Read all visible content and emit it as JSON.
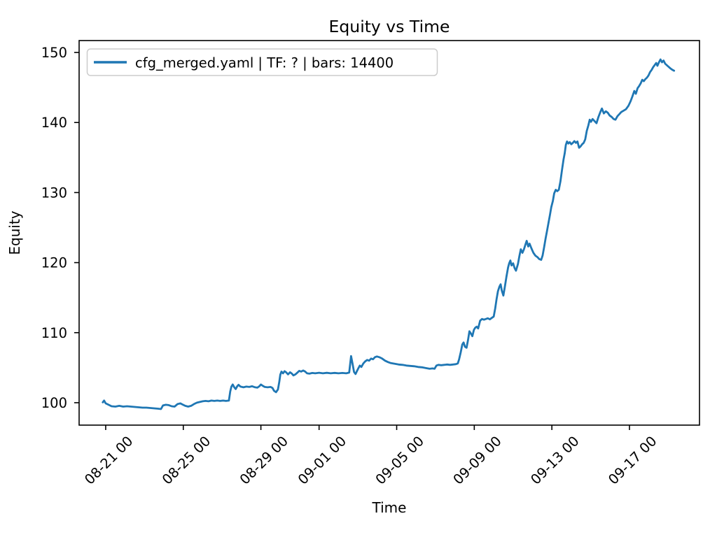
{
  "figure": {
    "background": "#ffffff",
    "text_color": "#000000",
    "spine_color": "#000000"
  },
  "chart_data": {
    "type": "line",
    "title": "Equity vs Time",
    "xlabel": "Time",
    "ylabel": "Equity",
    "grid": false,
    "legend": {
      "position": "upper-left",
      "border_color": "#cccccc",
      "entries": [
        {
          "label": "cfg_merged.yaml | TF: ? | bars: 14400",
          "color": "#1f77b4"
        }
      ]
    },
    "x_axis": {
      "unit": "days since 08-21 00:00",
      "range": [
        -1.37,
        30.61
      ],
      "tick_positions": [
        0,
        4,
        8,
        11,
        15,
        19,
        23,
        27
      ],
      "tick_labels": [
        "08-21 00",
        "08-25 00",
        "08-29 00",
        "09-01 00",
        "09-05 00",
        "09-09 00",
        "09-13 00",
        "09-17 00"
      ],
      "tick_rotation_deg": 45
    },
    "y_axis": {
      "range": [
        96.8,
        151.7
      ],
      "tick_positions": [
        100,
        110,
        120,
        130,
        140,
        150
      ],
      "tick_labels": [
        "100",
        "110",
        "120",
        "130",
        "140",
        "150"
      ]
    },
    "series": [
      {
        "name": "cfg_merged.yaml | TF: ? | bars: 14400",
        "color": "#1f77b4",
        "line_width": 2.8,
        "points": [
          [
            -0.15,
            100.05
          ],
          [
            -0.08,
            100.3
          ],
          [
            0,
            99.9
          ],
          [
            0.15,
            99.7
          ],
          [
            0.3,
            99.5
          ],
          [
            0.5,
            99.45
          ],
          [
            0.7,
            99.55
          ],
          [
            0.9,
            99.45
          ],
          [
            1.1,
            99.5
          ],
          [
            1.3,
            99.45
          ],
          [
            1.5,
            99.4
          ],
          [
            1.7,
            99.35
          ],
          [
            1.9,
            99.3
          ],
          [
            2.1,
            99.3
          ],
          [
            2.3,
            99.25
          ],
          [
            2.5,
            99.2
          ],
          [
            2.7,
            99.15
          ],
          [
            2.85,
            99.1
          ],
          [
            2.95,
            99.6
          ],
          [
            3.1,
            99.7
          ],
          [
            3.25,
            99.65
          ],
          [
            3.4,
            99.5
          ],
          [
            3.55,
            99.45
          ],
          [
            3.7,
            99.8
          ],
          [
            3.85,
            99.9
          ],
          [
            3.95,
            99.75
          ],
          [
            4.1,
            99.55
          ],
          [
            4.25,
            99.45
          ],
          [
            4.4,
            99.55
          ],
          [
            4.55,
            99.8
          ],
          [
            4.7,
            100.0
          ],
          [
            4.85,
            100.1
          ],
          [
            5.0,
            100.2
          ],
          [
            5.15,
            100.25
          ],
          [
            5.3,
            100.2
          ],
          [
            5.45,
            100.3
          ],
          [
            5.6,
            100.25
          ],
          [
            5.75,
            100.3
          ],
          [
            5.9,
            100.25
          ],
          [
            6.05,
            100.3
          ],
          [
            6.2,
            100.25
          ],
          [
            6.35,
            100.3
          ],
          [
            6.42,
            101.6
          ],
          [
            6.48,
            102.3
          ],
          [
            6.55,
            102.6
          ],
          [
            6.63,
            102.2
          ],
          [
            6.7,
            101.95
          ],
          [
            6.78,
            102.35
          ],
          [
            6.85,
            102.55
          ],
          [
            6.95,
            102.3
          ],
          [
            7.1,
            102.2
          ],
          [
            7.25,
            102.3
          ],
          [
            7.4,
            102.25
          ],
          [
            7.55,
            102.35
          ],
          [
            7.7,
            102.2
          ],
          [
            7.82,
            102.15
          ],
          [
            7.92,
            102.35
          ],
          [
            8.0,
            102.6
          ],
          [
            8.1,
            102.4
          ],
          [
            8.2,
            102.25
          ],
          [
            8.35,
            102.2
          ],
          [
            8.5,
            102.25
          ],
          [
            8.6,
            102.1
          ],
          [
            8.68,
            101.7
          ],
          [
            8.78,
            101.5
          ],
          [
            8.88,
            101.9
          ],
          [
            8.95,
            103.0
          ],
          [
            9.0,
            104.0
          ],
          [
            9.06,
            104.45
          ],
          [
            9.14,
            104.2
          ],
          [
            9.22,
            104.5
          ],
          [
            9.3,
            104.35
          ],
          [
            9.4,
            104.05
          ],
          [
            9.5,
            104.35
          ],
          [
            9.6,
            104.15
          ],
          [
            9.68,
            103.9
          ],
          [
            9.78,
            104.05
          ],
          [
            9.88,
            104.3
          ],
          [
            9.98,
            104.55
          ],
          [
            10.08,
            104.45
          ],
          [
            10.18,
            104.6
          ],
          [
            10.28,
            104.45
          ],
          [
            10.38,
            104.2
          ],
          [
            10.5,
            104.15
          ],
          [
            10.65,
            104.25
          ],
          [
            10.8,
            104.2
          ],
          [
            11.0,
            104.28
          ],
          [
            11.2,
            104.2
          ],
          [
            11.4,
            104.27
          ],
          [
            11.6,
            104.2
          ],
          [
            11.8,
            104.26
          ],
          [
            12.0,
            104.2
          ],
          [
            12.2,
            104.25
          ],
          [
            12.4,
            104.2
          ],
          [
            12.55,
            104.3
          ],
          [
            12.65,
            106.65
          ],
          [
            12.72,
            105.6
          ],
          [
            12.8,
            104.4
          ],
          [
            12.88,
            104.1
          ],
          [
            12.95,
            104.5
          ],
          [
            13.02,
            104.9
          ],
          [
            13.1,
            105.3
          ],
          [
            13.18,
            105.1
          ],
          [
            13.28,
            105.6
          ],
          [
            13.38,
            105.9
          ],
          [
            13.48,
            106.1
          ],
          [
            13.58,
            106.0
          ],
          [
            13.68,
            106.3
          ],
          [
            13.78,
            106.2
          ],
          [
            13.88,
            106.5
          ],
          [
            13.98,
            106.6
          ],
          [
            14.1,
            106.5
          ],
          [
            14.25,
            106.3
          ],
          [
            14.4,
            106.0
          ],
          [
            14.55,
            105.8
          ],
          [
            14.7,
            105.65
          ],
          [
            14.9,
            105.55
          ],
          [
            15.1,
            105.45
          ],
          [
            15.3,
            105.4
          ],
          [
            15.5,
            105.3
          ],
          [
            15.7,
            105.25
          ],
          [
            15.9,
            105.2
          ],
          [
            16.1,
            105.1
          ],
          [
            16.3,
            105.05
          ],
          [
            16.5,
            104.95
          ],
          [
            16.7,
            104.85
          ],
          [
            16.85,
            104.9
          ],
          [
            16.95,
            104.85
          ],
          [
            17.05,
            105.3
          ],
          [
            17.15,
            105.4
          ],
          [
            17.3,
            105.35
          ],
          [
            17.45,
            105.4
          ],
          [
            17.6,
            105.45
          ],
          [
            17.75,
            105.4
          ],
          [
            17.9,
            105.45
          ],
          [
            18.05,
            105.5
          ],
          [
            18.15,
            105.6
          ],
          [
            18.22,
            106.2
          ],
          [
            18.3,
            107.2
          ],
          [
            18.38,
            108.3
          ],
          [
            18.45,
            108.6
          ],
          [
            18.52,
            108.0
          ],
          [
            18.6,
            107.85
          ],
          [
            18.68,
            109.0
          ],
          [
            18.75,
            110.2
          ],
          [
            18.82,
            109.9
          ],
          [
            18.9,
            109.5
          ],
          [
            18.98,
            110.4
          ],
          [
            19.05,
            110.7
          ],
          [
            19.12,
            110.85
          ],
          [
            19.2,
            110.6
          ],
          [
            19.3,
            111.7
          ],
          [
            19.4,
            111.95
          ],
          [
            19.5,
            111.85
          ],
          [
            19.6,
            111.95
          ],
          [
            19.7,
            112.05
          ],
          [
            19.8,
            111.9
          ],
          [
            19.9,
            112.1
          ],
          [
            20.0,
            112.3
          ],
          [
            20.08,
            113.5
          ],
          [
            20.15,
            114.8
          ],
          [
            20.22,
            115.9
          ],
          [
            20.3,
            116.6
          ],
          [
            20.36,
            116.9
          ],
          [
            20.42,
            116.0
          ],
          [
            20.5,
            115.3
          ],
          [
            20.58,
            116.6
          ],
          [
            20.66,
            118.0
          ],
          [
            20.74,
            119.3
          ],
          [
            20.8,
            119.9
          ],
          [
            20.86,
            120.3
          ],
          [
            20.92,
            119.6
          ],
          [
            21.0,
            119.9
          ],
          [
            21.08,
            119.2
          ],
          [
            21.15,
            118.85
          ],
          [
            21.25,
            119.8
          ],
          [
            21.33,
            121.0
          ],
          [
            21.4,
            121.9
          ],
          [
            21.48,
            121.4
          ],
          [
            21.56,
            121.9
          ],
          [
            21.64,
            122.6
          ],
          [
            21.7,
            123.1
          ],
          [
            21.78,
            122.3
          ],
          [
            21.85,
            122.7
          ],
          [
            21.95,
            122.0
          ],
          [
            22.05,
            121.4
          ],
          [
            22.15,
            121.0
          ],
          [
            22.25,
            120.8
          ],
          [
            22.35,
            120.5
          ],
          [
            22.45,
            120.4
          ],
          [
            22.52,
            121.0
          ],
          [
            22.6,
            122.2
          ],
          [
            22.68,
            123.5
          ],
          [
            22.75,
            124.5
          ],
          [
            22.82,
            125.6
          ],
          [
            22.9,
            126.8
          ],
          [
            22.97,
            127.9
          ],
          [
            23.05,
            128.8
          ],
          [
            23.12,
            129.9
          ],
          [
            23.2,
            130.4
          ],
          [
            23.28,
            130.2
          ],
          [
            23.36,
            130.4
          ],
          [
            23.44,
            131.6
          ],
          [
            23.52,
            133.2
          ],
          [
            23.6,
            134.7
          ],
          [
            23.66,
            135.6
          ],
          [
            23.72,
            136.8
          ],
          [
            23.78,
            137.3
          ],
          [
            23.85,
            137.0
          ],
          [
            23.92,
            137.2
          ],
          [
            24.0,
            136.9
          ],
          [
            24.08,
            137.1
          ],
          [
            24.16,
            137.35
          ],
          [
            24.24,
            137.1
          ],
          [
            24.32,
            137.3
          ],
          [
            24.4,
            136.4
          ],
          [
            24.48,
            136.6
          ],
          [
            24.56,
            136.9
          ],
          [
            24.64,
            137.1
          ],
          [
            24.72,
            137.6
          ],
          [
            24.8,
            138.8
          ],
          [
            24.88,
            139.6
          ],
          [
            24.95,
            140.4
          ],
          [
            25.02,
            140.1
          ],
          [
            25.1,
            140.5
          ],
          [
            25.2,
            140.2
          ],
          [
            25.3,
            139.9
          ],
          [
            25.4,
            140.8
          ],
          [
            25.5,
            141.5
          ],
          [
            25.58,
            142.0
          ],
          [
            25.68,
            141.3
          ],
          [
            25.78,
            141.6
          ],
          [
            25.88,
            141.4
          ],
          [
            25.98,
            141.0
          ],
          [
            26.08,
            140.8
          ],
          [
            26.18,
            140.5
          ],
          [
            26.28,
            140.4
          ],
          [
            26.38,
            140.9
          ],
          [
            26.48,
            141.2
          ],
          [
            26.58,
            141.5
          ],
          [
            26.7,
            141.7
          ],
          [
            26.82,
            141.9
          ],
          [
            26.95,
            142.4
          ],
          [
            27.05,
            143.0
          ],
          [
            27.15,
            143.7
          ],
          [
            27.25,
            144.5
          ],
          [
            27.33,
            144.1
          ],
          [
            27.42,
            144.9
          ],
          [
            27.5,
            145.2
          ],
          [
            27.58,
            145.6
          ],
          [
            27.66,
            146.1
          ],
          [
            27.74,
            145.9
          ],
          [
            27.82,
            146.2
          ],
          [
            27.9,
            146.4
          ],
          [
            27.98,
            146.7
          ],
          [
            28.06,
            147.2
          ],
          [
            28.14,
            147.5
          ],
          [
            28.22,
            147.9
          ],
          [
            28.3,
            148.2
          ],
          [
            28.38,
            148.5
          ],
          [
            28.44,
            148.1
          ],
          [
            28.52,
            148.6
          ],
          [
            28.6,
            149.0
          ],
          [
            28.68,
            148.6
          ],
          [
            28.76,
            148.85
          ],
          [
            28.84,
            148.4
          ],
          [
            28.92,
            148.2
          ],
          [
            29.0,
            148.0
          ],
          [
            29.1,
            147.75
          ],
          [
            29.2,
            147.55
          ],
          [
            29.3,
            147.4
          ]
        ]
      }
    ]
  }
}
